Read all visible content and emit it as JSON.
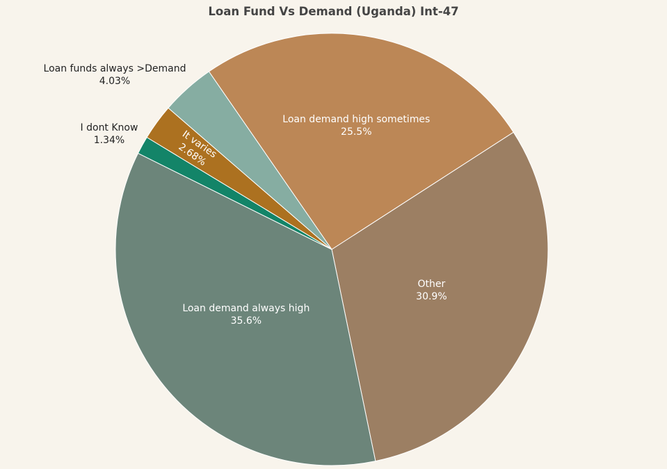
{
  "chart_data": {
    "type": "pie",
    "title": "Loan Fund Vs Demand (Uganda) Int-47",
    "slices": [
      {
        "label": "Loan demand high sometimes",
        "value_label": "25.5%",
        "value": 25.5,
        "color": "#bc8756",
        "label_color": "#ffffff",
        "label_pos": "inside"
      },
      {
        "label": "Other",
        "value_label": "30.9%",
        "value": 30.9,
        "color": "#9c7f63",
        "label_color": "#ffffff",
        "label_pos": "inside"
      },
      {
        "label": "Loan demand always high",
        "value_label": "35.6%",
        "value": 35.6,
        "color": "#6c857a",
        "label_color": "#ffffff",
        "label_pos": "inside"
      },
      {
        "label": "I dont Know",
        "value_label": "1.34%",
        "value": 1.34,
        "color": "#138468",
        "label_color": "#222222",
        "label_pos": "outside"
      },
      {
        "label": "It varies",
        "value_label": "2.68%",
        "value": 2.68,
        "color": "#ac7120",
        "label_color": "#ffffff",
        "label_pos": "inside-rotated"
      },
      {
        "label": "Loan funds always >Demand",
        "value_label": "4.03%",
        "value": 4.03,
        "color": "#86ada2",
        "label_color": "#222222",
        "label_pos": "outside"
      }
    ],
    "start_direction": "clockwise",
    "legend": "none"
  }
}
